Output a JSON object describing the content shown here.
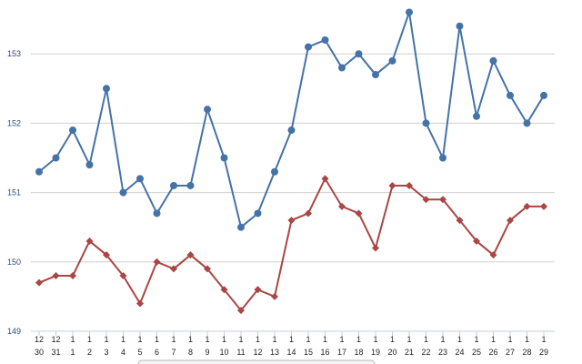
{
  "chart_data": {
    "type": "line",
    "title": "",
    "xlabel": "",
    "ylabel": "",
    "ylim": [
      149,
      153.6
    ],
    "yticks": [
      "149",
      "150",
      "151",
      "152",
      "153"
    ],
    "grid": "horizontal",
    "categories": [
      "12/30",
      "12/31",
      "1/1",
      "1/2",
      "1/3",
      "1/4",
      "1/5",
      "1/6",
      "1/7",
      "1/8",
      "1/9",
      "1/10",
      "1/11",
      "1/12",
      "1/13",
      "1/14",
      "1/15",
      "1/16",
      "1/17",
      "1/18",
      "1/19",
      "1/20",
      "1/21",
      "1/22",
      "1/23",
      "1/24",
      "1/25",
      "1/26",
      "1/27",
      "1/28",
      "1/29"
    ],
    "x_month_labels": [
      "12",
      "12",
      "1",
      "1",
      "1",
      "1",
      "1",
      "1",
      "1",
      "1",
      "1",
      "1",
      "1",
      "1",
      "1",
      "1",
      "1",
      "1",
      "1",
      "1",
      "1",
      "1",
      "1",
      "1",
      "1",
      "1",
      "1",
      "1",
      "1",
      "1",
      "1"
    ],
    "x_day_labels": [
      "30",
      "31",
      "1",
      "2",
      "3",
      "4",
      "5",
      "6",
      "7",
      "8",
      "9",
      "10",
      "11",
      "12",
      "13",
      "14",
      "15",
      "16",
      "17",
      "18",
      "19",
      "20",
      "21",
      "22",
      "23",
      "24",
      "25",
      "26",
      "27",
      "28",
      "29"
    ],
    "series": [
      {
        "color": "#4572a7",
        "marker": "circle",
        "values": [
          151.3,
          151.5,
          151.9,
          151.4,
          152.5,
          151.0,
          151.2,
          150.7,
          151.1,
          151.1,
          152.2,
          151.5,
          150.5,
          150.7,
          151.3,
          151.9,
          153.1,
          153.2,
          152.8,
          153.0,
          152.7,
          152.9,
          153.6,
          152.0,
          151.5,
          153.4,
          152.1,
          152.9,
          152.4,
          152.0,
          152.4
        ]
      },
      {
        "color": "#aa4643",
        "marker": "diamond",
        "values": [
          149.7,
          149.8,
          149.8,
          150.3,
          150.1,
          149.8,
          149.4,
          150.0,
          149.9,
          150.1,
          149.9,
          149.6,
          149.3,
          149.6,
          149.5,
          150.6,
          150.7,
          151.2,
          150.8,
          150.7,
          150.2,
          151.1,
          151.1,
          150.9,
          150.9,
          150.6,
          150.3,
          150.1,
          150.6,
          150.8,
          150.8
        ]
      }
    ]
  }
}
